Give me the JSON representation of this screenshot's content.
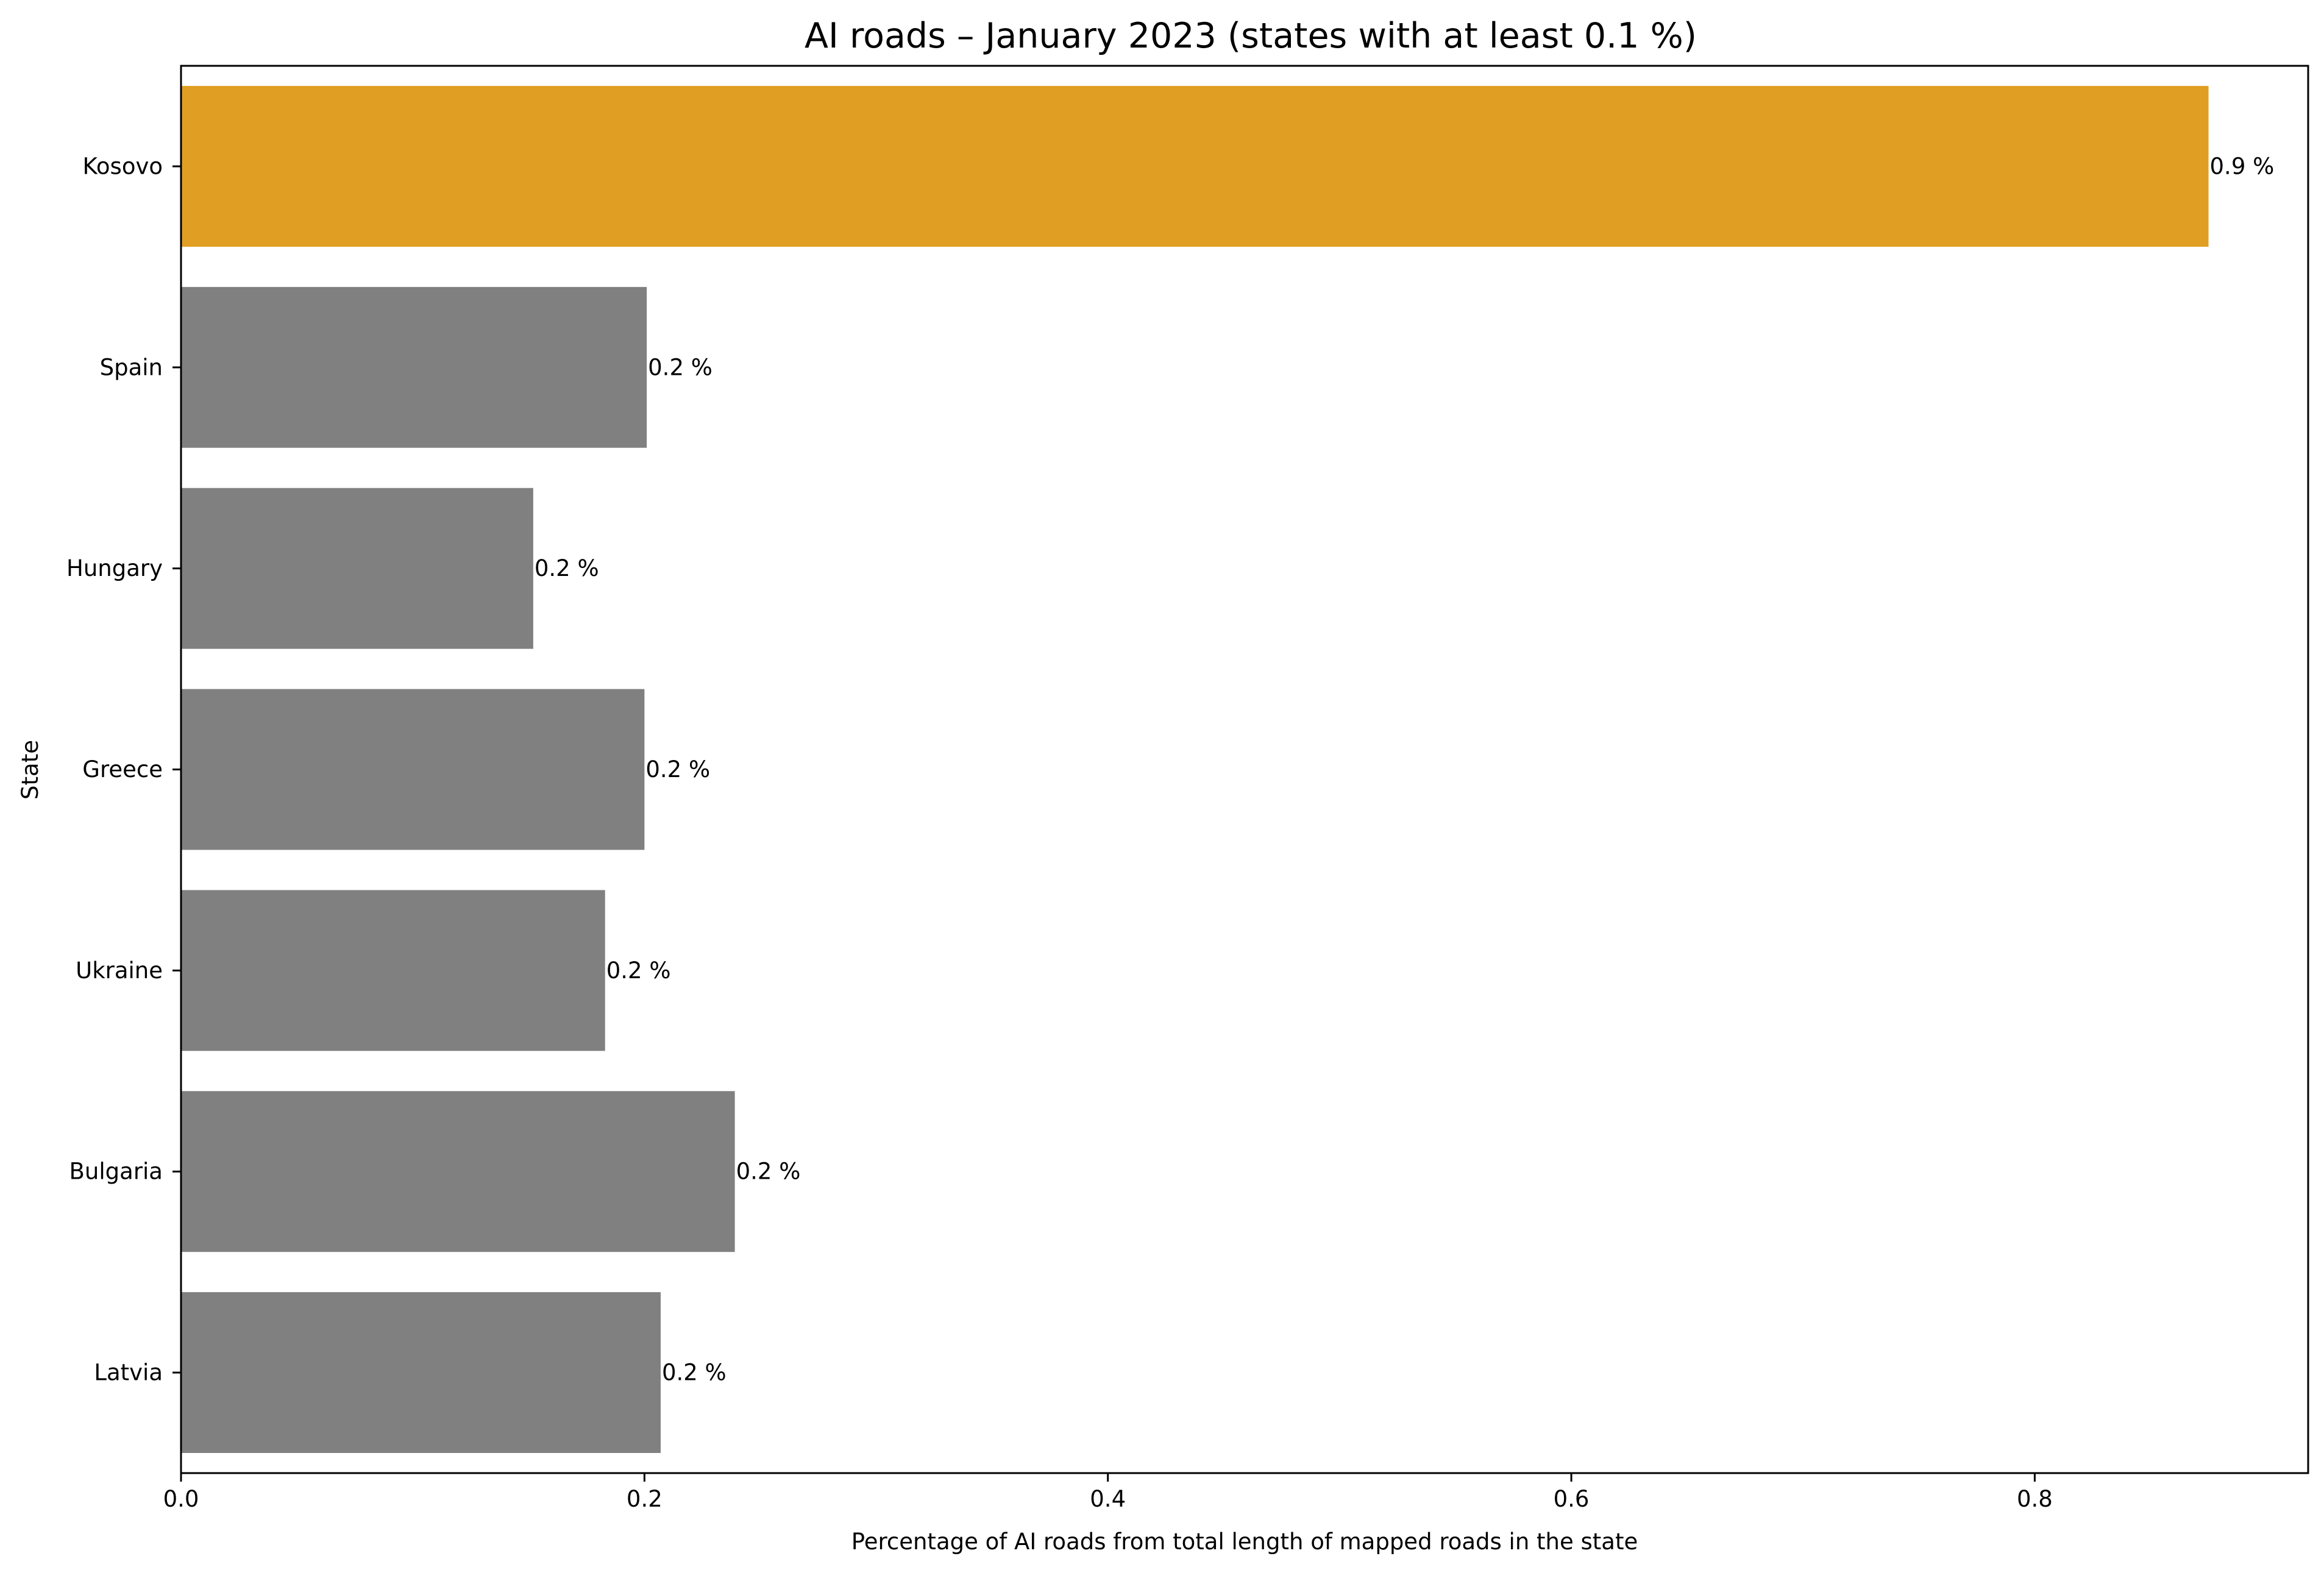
{
  "chart_data": {
    "type": "bar",
    "orientation": "horizontal",
    "title": "AI roads – January 2023 (states with at least 0.1 %)",
    "xlabel": "Percentage of AI roads from total length of mapped roads in the state",
    "ylabel": "State",
    "categories": [
      "Kosovo",
      "Spain",
      "Hungary",
      "Greece",
      "Ukraine",
      "Bulgaria",
      "Latvia"
    ],
    "values": [
      0.875,
      0.201,
      0.152,
      0.2,
      0.183,
      0.239,
      0.207
    ],
    "data_labels": [
      "0.9 %",
      "0.2 %",
      "0.2 %",
      "0.2 %",
      "0.2 %",
      "0.2 %",
      "0.2 %"
    ],
    "xlim": [
      0,
      0.918
    ],
    "xticks": [
      0.0,
      0.2,
      0.4,
      0.6,
      0.8
    ],
    "xtick_labels": [
      "0.0",
      "0.2",
      "0.4",
      "0.6",
      "0.8"
    ],
    "grid": false,
    "colors": {
      "highlight": "#e09e22",
      "default": "#808080"
    },
    "highlight_category": "Kosovo"
  }
}
